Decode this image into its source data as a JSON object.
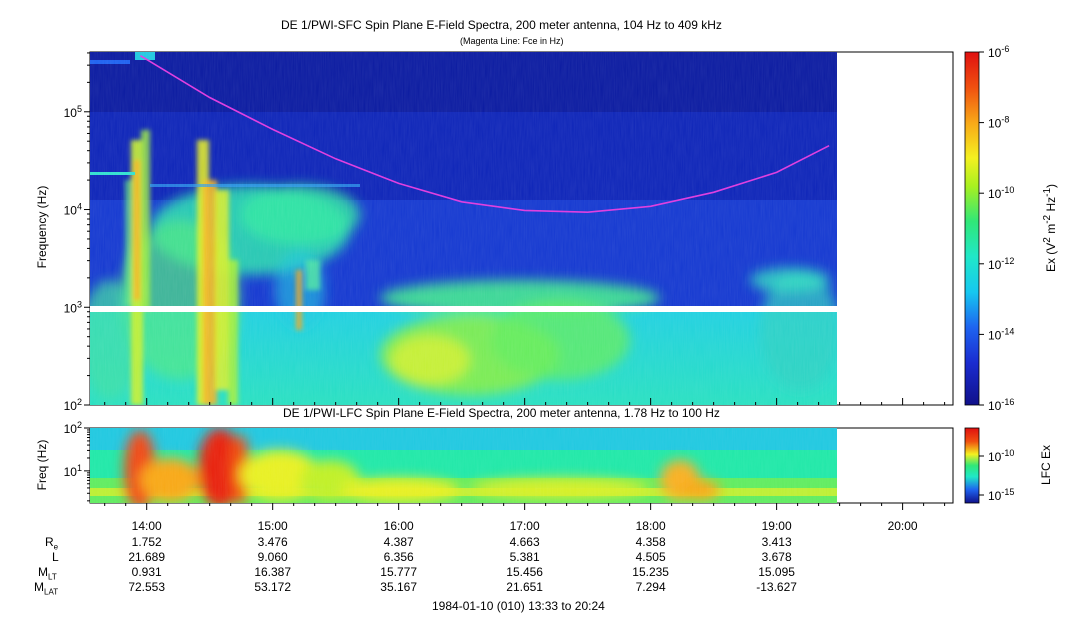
{
  "chart_data": [
    {
      "type": "heatmap",
      "title": "DE 1/PWI-SFC  Spin Plane E-Field Spectra, 200 meter antenna, 104 Hz to 409 kHz",
      "subtitle": "(Magenta Line: Fce in Hz)",
      "ylabel": "Frequency (Hz)",
      "yscale": "log",
      "ylim": [
        100,
        409000
      ],
      "yticks": [
        "10^2",
        "10^3",
        "10^4",
        "10^5"
      ],
      "x_range": [
        "13:33",
        "20:24"
      ],
      "data_end": "19:30",
      "colorbar": {
        "label": "Ex (V^2 m^-2 Hz^-1)",
        "scale": "log",
        "range": [
          "10^-16",
          "10^-6"
        ],
        "ticks": [
          "10^-16",
          "10^-14",
          "10^-12",
          "10^-10",
          "10^-8",
          "10^-6"
        ]
      },
      "series": [
        {
          "name": "Fce",
          "color": "#e040e0",
          "points": [
            [
              "13:57",
              375000
            ],
            [
              "14:30",
              140000
            ],
            [
              "15:00",
              66000
            ],
            [
              "15:30",
              33000
            ],
            [
              "16:00",
              18500
            ],
            [
              "16:30",
              12000
            ],
            [
              "17:00",
              9800
            ],
            [
              "17:30",
              9400
            ],
            [
              "18:00",
              10800
            ],
            [
              "18:30",
              15000
            ],
            [
              "19:00",
              24000
            ],
            [
              "19:25",
              45000
            ]
          ]
        }
      ]
    },
    {
      "type": "heatmap",
      "title": "DE 1/PWI-LFC  Spin Plane E-Field Spectra, 200 meter antenna, 1.78 Hz to 100 Hz",
      "ylabel": "Freq (Hz)",
      "yscale": "log",
      "ylim": [
        1.78,
        100
      ],
      "yticks": [
        "10^1",
        "10^2"
      ],
      "x_range": [
        "13:33",
        "20:24"
      ],
      "data_end": "19:30",
      "colorbar": {
        "label": "LFC Ex",
        "scale": "log",
        "ticks": [
          "10^-15",
          "10^-10"
        ]
      }
    }
  ],
  "x_axis": {
    "ticks": [
      "14:00",
      "15:00",
      "16:00",
      "17:00",
      "18:00",
      "19:00",
      "20:00"
    ],
    "footer": "1984-01-10 (010) 13:33 to 20:24"
  },
  "ephemeris": {
    "labels": {
      "re": {
        "base": "R",
        "sub": "e"
      },
      "l": {
        "base": "L",
        "sub": ""
      },
      "mlt": {
        "base": "M",
        "sub": "LT"
      },
      "mlat": {
        "base": "M",
        "sub": "LAT"
      }
    },
    "columns": [
      {
        "re": "1.752",
        "l": "21.689",
        "mlt": "0.931",
        "mlat": "72.553"
      },
      {
        "re": "3.476",
        "l": "9.060",
        "mlt": "16.387",
        "mlat": "53.172"
      },
      {
        "re": "4.387",
        "l": "6.356",
        "mlt": "15.777",
        "mlat": "35.167"
      },
      {
        "re": "4.663",
        "l": "5.381",
        "mlt": "15.456",
        "mlat": "21.651"
      },
      {
        "re": "4.358",
        "l": "4.505",
        "mlt": "15.235",
        "mlat": "7.294"
      },
      {
        "re": "3.413",
        "l": "3.678",
        "mlt": "15.095",
        "mlat": "-13.627"
      }
    ]
  },
  "colors": {
    "fce_line": "#e040e0",
    "background_deep": "#0a1aa8",
    "background_mid": "#1233c8"
  }
}
